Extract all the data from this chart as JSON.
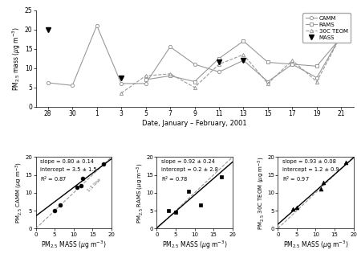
{
  "top_plot": {
    "dates_labels": [
      "28",
      "30",
      "1",
      "3",
      "5",
      "7",
      "9",
      "11",
      "13",
      "15",
      "17",
      "19",
      "21"
    ],
    "camm": [
      6.2,
      5.5,
      21.0,
      6.0,
      6.0,
      15.5,
      11.0,
      9.0,
      12.0,
      6.5,
      11.0,
      7.5,
      18.5
    ],
    "rams": [
      null,
      null,
      null,
      null,
      7.0,
      8.0,
      6.5,
      12.5,
      17.0,
      11.5,
      11.0,
      10.5,
      18.0
    ],
    "teom": [
      null,
      null,
      null,
      3.5,
      8.0,
      8.5,
      5.0,
      11.0,
      13.5,
      6.0,
      12.0,
      6.5,
      18.5
    ],
    "mass": [
      20.0,
      null,
      null,
      7.5,
      null,
      null,
      null,
      11.5,
      12.0,
      null,
      null,
      null,
      18.5
    ],
    "xlabel": "Date, January – February, 2001",
    "ylabel": "PM$_{2.5}$ mass ($\\mu$g m$^{-3}$)",
    "ylim": [
      0,
      25
    ],
    "yticks": [
      0,
      5,
      10,
      15,
      20,
      25
    ]
  },
  "scatter1": {
    "mass_x": [
      5.0,
      6.5,
      11.0,
      12.0,
      12.5,
      18.0
    ],
    "camm_y": [
      5.0,
      6.5,
      11.5,
      12.0,
      14.0,
      18.0
    ],
    "slope": 0.8,
    "intercept": 3.5,
    "slope_err": 0.14,
    "intercept_err": 1.5,
    "r2": 0.87,
    "xlabel": "PM$_{2.5}$ MASS ($\\mu$g m$^{-3}$)",
    "ylabel": "PM$_{2.5}$ CAMM ($\\mu$g m$^{-3}$)",
    "text1": "slope = 0.80 ± 0.14",
    "text2": "intercept = 3.5 ± 1.5",
    "text3": "R$^2$ = 0.87",
    "xlim": [
      0,
      20
    ],
    "ylim": [
      0,
      20
    ],
    "marker": "o"
  },
  "scatter2": {
    "mass_x": [
      3.0,
      5.0,
      8.5,
      11.5,
      17.0
    ],
    "rams_y": [
      5.0,
      4.5,
      10.5,
      6.5,
      14.5
    ],
    "slope": 0.92,
    "intercept": 0.2,
    "slope_err": 0.24,
    "intercept_err": 2.8,
    "r2": 0.78,
    "xlabel": "PM$_{2.5}$ MASS ($\\mu$g m$^{-3}$)",
    "ylabel": "PM$_{2.5}$ RAMS ($\\mu$g m$^{-3}$)",
    "text1": "slope = 0.92 ± 0.24",
    "text2": "intercept = 0.2 ± 2.8",
    "text3": "R$^2$ = 0.78",
    "xlim": [
      0,
      20
    ],
    "ylim": [
      0,
      20
    ],
    "marker": "s"
  },
  "scatter3": {
    "mass_x": [
      4.0,
      5.0,
      11.5,
      12.0,
      18.0
    ],
    "teom_y": [
      5.5,
      6.0,
      11.0,
      13.0,
      18.5
    ],
    "slope": 0.93,
    "intercept": 1.2,
    "slope_err": 0.08,
    "intercept_err": 0.9,
    "r2": 0.97,
    "xlabel": "PM$_{2.5}$ MASS ($\\mu$g m$^{-3}$)",
    "ylabel": "PM$_{2.5}$ 30C TEOM ($\\mu$g m$^{-3}$)",
    "text1": "slope = 0.93 ± 0.08",
    "text2": "intercept = 1.2 ± 0.9",
    "text3": "R$^2$ = 0.97",
    "xlim": [
      0,
      20
    ],
    "ylim": [
      0,
      20
    ],
    "marker": "^"
  }
}
